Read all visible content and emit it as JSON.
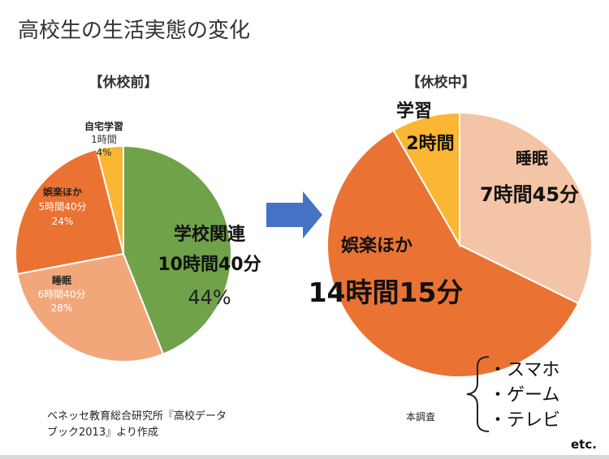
{
  "title": "高校生の生活実態の変化",
  "source_before": [
    "ベネッセ教育総合研究所『高校データ",
    "ブック2013』より作成"
  ],
  "source_after": "本調査",
  "activities": [
    "・スマホ",
    "・ゲーム",
    "・テレビ"
  ],
  "etc": "etc.",
  "colors": {
    "green": "#70a24a",
    "salmon": "#f2a77b",
    "orange": "#ea7333",
    "yellow": "#fbb634",
    "peach": "#f4c4a6",
    "arrow": "#4472c4"
  },
  "chart_data": [
    {
      "type": "pie",
      "title": "【休校前】",
      "slices": [
        {
          "name": "学校関連",
          "time": "10時間40分",
          "percent": "44%",
          "value": 44,
          "color": "#70a24a"
        },
        {
          "name": "睡眠",
          "time": "6時間40分",
          "percent": "28%",
          "value": 28,
          "color": "#f2a77b"
        },
        {
          "name": "娯楽ほか",
          "time": "5時間40分",
          "percent": "24%",
          "value": 24,
          "color": "#ea7333"
        },
        {
          "name": "自宅学習",
          "time": "1時間",
          "percent": "4%",
          "value": 4,
          "color": "#fbb634"
        }
      ]
    },
    {
      "type": "pie",
      "title": "【休校中】",
      "slices": [
        {
          "name": "睡眠",
          "time": "7時間45分",
          "value": 465,
          "color": "#f4c4a6"
        },
        {
          "name": "娯楽ほか",
          "time": "14時間15分",
          "value": 855,
          "color": "#ea7333"
        },
        {
          "name": "学習",
          "time": "2時間",
          "value": 120,
          "color": "#fbb634"
        }
      ]
    }
  ]
}
